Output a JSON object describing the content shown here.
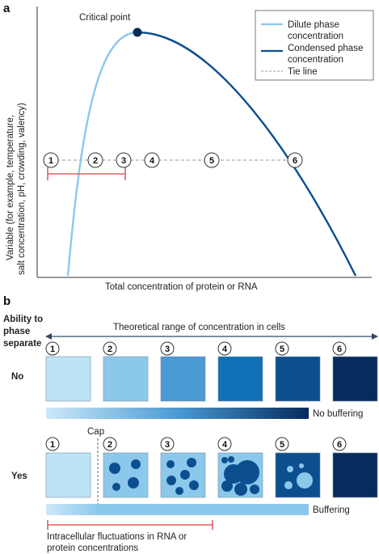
{
  "panel_a": {
    "letter": "a",
    "critical_point_label": "Critical point",
    "legend": {
      "dilute": "Dilute phase\nconcentration",
      "condensed": "Condensed phase\nconcentration",
      "tie": "Tie line",
      "dilute_color": "#8cc8ec",
      "condensed_color": "#0b4f8f",
      "tie_color": "#9a9a9a"
    },
    "y_label_line1": "Variable (for example, temperature,",
    "y_label_line2": "salt concentration, pH, crowding, valency)",
    "x_label": "Total concentration of protein or RNA",
    "markers": [
      "1",
      "2",
      "3",
      "4",
      "5",
      "6"
    ],
    "range_color": "#e06060"
  },
  "panel_b": {
    "letter": "b",
    "row_header": "Ability to\nphase\nseparate",
    "range_label": "Theoretical range of concentration in cells",
    "numbers": [
      "1",
      "2",
      "3",
      "4",
      "5",
      "6"
    ],
    "row_no": {
      "label": "No",
      "colors": [
        "#bde3f7",
        "#8cc8ec",
        "#4a9ad3",
        "#1170b6",
        "#0b4f8f",
        "#062b5c"
      ],
      "bar_label": "No buffering"
    },
    "row_yes": {
      "label": "Yes",
      "cap_label": "Cap",
      "bar_label": "Buffering",
      "bg_colors": [
        "#bde3f7",
        "#8cc8ec",
        "#8cc8ec",
        "#8cc8ec",
        "#0b4f8f",
        "#062b5c"
      ],
      "droplet_color": "#0b4f8f",
      "inverse_droplet_color": "#8cc8ec"
    },
    "fluctuation_label": "Intracellular fluctuations in RNA or\nprotein concentrations"
  }
}
